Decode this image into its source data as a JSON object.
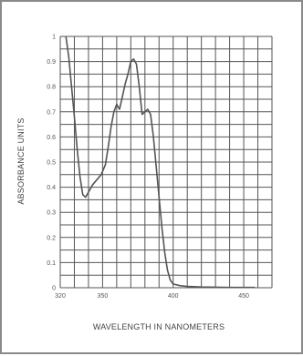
{
  "chart_data": {
    "type": "line",
    "xlabel": "WAVELENGTH IN NANOMETERS",
    "ylabel": "ABSORBANCE UNITS",
    "xlim": [
      320,
      470
    ],
    "ylim": [
      0,
      1
    ],
    "grid": true,
    "x_ticks": [
      {
        "value": 320,
        "label": "320"
      },
      {
        "value": 350,
        "label": "350"
      },
      {
        "value": 400,
        "label": "400"
      },
      {
        "value": 450,
        "label": "450"
      }
    ],
    "y_ticks": [
      {
        "value": 0,
        "label": "0"
      },
      {
        "value": 0.1,
        "label": "0.1"
      },
      {
        "value": 0.2,
        "label": "0.2"
      },
      {
        "value": 0.3,
        "label": "0.3"
      },
      {
        "value": 0.4,
        "label": "0.4"
      },
      {
        "value": 0.5,
        "label": "0.5"
      },
      {
        "value": 0.6,
        "label": "0.6"
      },
      {
        "value": 0.7,
        "label": "0.7"
      },
      {
        "value": 0.8,
        "label": "0.8"
      },
      {
        "value": 0.9,
        "label": "0.9"
      },
      {
        "value": 1,
        "label": "1"
      }
    ],
    "series": [
      {
        "points": [
          [
            324,
            1.0
          ],
          [
            326,
            0.92
          ],
          [
            328,
            0.8
          ],
          [
            330,
            0.68
          ],
          [
            332,
            0.55
          ],
          [
            334,
            0.44
          ],
          [
            336,
            0.37
          ],
          [
            338,
            0.36
          ],
          [
            340,
            0.38
          ],
          [
            343,
            0.41
          ],
          [
            346,
            0.43
          ],
          [
            349,
            0.45
          ],
          [
            352,
            0.49
          ],
          [
            354,
            0.56
          ],
          [
            356,
            0.64
          ],
          [
            358,
            0.7
          ],
          [
            360,
            0.73
          ],
          [
            362,
            0.71
          ],
          [
            364,
            0.76
          ],
          [
            366,
            0.81
          ],
          [
            368,
            0.85
          ],
          [
            370,
            0.9
          ],
          [
            372,
            0.91
          ],
          [
            374,
            0.89
          ],
          [
            376,
            0.8
          ],
          [
            378,
            0.69
          ],
          [
            380,
            0.7
          ],
          [
            382,
            0.71
          ],
          [
            384,
            0.69
          ],
          [
            386,
            0.6
          ],
          [
            388,
            0.48
          ],
          [
            390,
            0.36
          ],
          [
            392,
            0.24
          ],
          [
            394,
            0.14
          ],
          [
            396,
            0.07
          ],
          [
            398,
            0.03
          ],
          [
            400,
            0.015
          ],
          [
            405,
            0.008
          ],
          [
            410,
            0.005
          ],
          [
            420,
            0.003
          ],
          [
            430,
            0.002
          ],
          [
            440,
            0.001
          ],
          [
            450,
            0.001
          ],
          [
            458,
            0.001
          ]
        ]
      }
    ],
    "colors": {
      "line": "#555555",
      "grid": "#555555",
      "frame": "#8a8a8a"
    }
  }
}
